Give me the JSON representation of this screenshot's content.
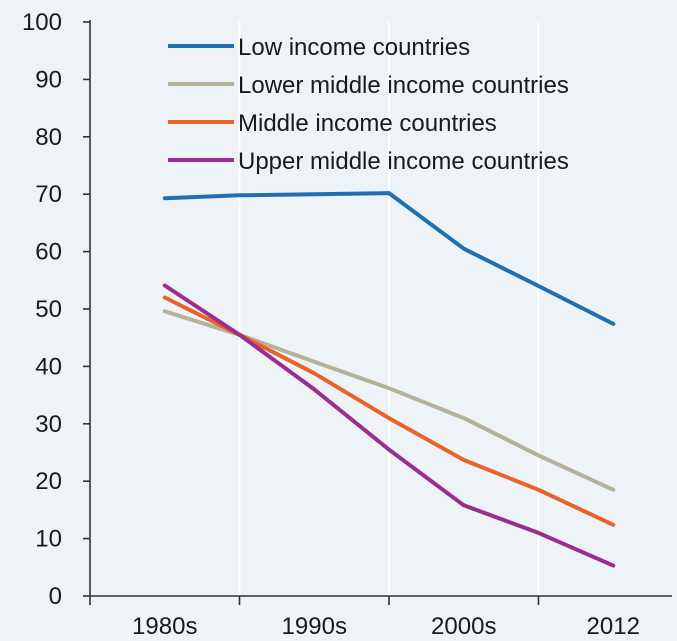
{
  "chart_data": {
    "type": "line",
    "title": "",
    "xlabel": "",
    "ylabel": "",
    "categories": [
      "1980s",
      "1990s",
      "2000s",
      "2012"
    ],
    "ylim": [
      0,
      100
    ],
    "yticks": [
      0,
      10,
      20,
      30,
      40,
      50,
      60,
      70,
      80,
      90,
      100
    ],
    "grid": "vertical lines at category boundaries",
    "legend_placement": "top",
    "series": [
      {
        "name": "Low income countries",
        "color": "#1f6fb5",
        "x": [
          0,
          0.5,
          1.5,
          2,
          2.5,
          3
        ],
        "values": [
          69.3,
          69.8,
          70.2,
          60.5,
          54,
          47.4
        ]
      },
      {
        "name": "Lower middle income countries",
        "color": "#b6b19a",
        "x": [
          0,
          0.5,
          1,
          1.5,
          2,
          2.5,
          3
        ],
        "values": [
          49.6,
          45.5,
          40.8,
          36.2,
          31,
          24.5,
          18.5
        ]
      },
      {
        "name": "Middle income countries",
        "color": "#e8622a",
        "x": [
          0,
          0.5,
          1,
          1.5,
          2,
          2.5,
          3
        ],
        "values": [
          52,
          45.5,
          38.8,
          31,
          23.7,
          18.5,
          12.4
        ]
      },
      {
        "name": "Upper middle income countries",
        "color": "#9b2d8f",
        "x": [
          0,
          0.5,
          1,
          1.5,
          2,
          2.5,
          3
        ],
        "values": [
          54.1,
          45.5,
          36,
          25.5,
          15.8,
          11,
          5.3
        ]
      }
    ]
  }
}
